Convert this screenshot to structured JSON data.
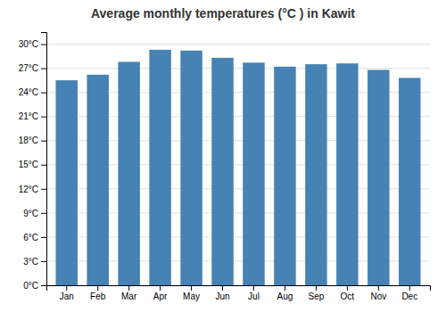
{
  "chart_data": {
    "type": "bar",
    "title": "Average monthly temperatures (°C ) in Kawit",
    "categories": [
      "Jan",
      "Feb",
      "Mar",
      "Apr",
      "May",
      "Jun",
      "Jul",
      "Aug",
      "Sep",
      "Oct",
      "Nov",
      "Dec"
    ],
    "values": [
      25.5,
      26.2,
      27.8,
      29.3,
      29.2,
      28.3,
      27.7,
      27.2,
      27.5,
      27.6,
      26.8,
      25.8
    ],
    "ylim": [
      0,
      31.5
    ],
    "yticks": [
      {
        "value": 0,
        "label": "0°C"
      },
      {
        "value": 3,
        "label": "3°C"
      },
      {
        "value": 6,
        "label": "6°C"
      },
      {
        "value": 9,
        "label": "9°C"
      },
      {
        "value": 12,
        "label": "12°C"
      },
      {
        "value": 15,
        "label": "15°C"
      },
      {
        "value": 18,
        "label": "18°C"
      },
      {
        "value": 21,
        "label": "21°C"
      },
      {
        "value": 24,
        "label": "24°C"
      },
      {
        "value": 27,
        "label": "27°C"
      },
      {
        "value": 30,
        "label": "30°C"
      }
    ],
    "grid": true
  }
}
